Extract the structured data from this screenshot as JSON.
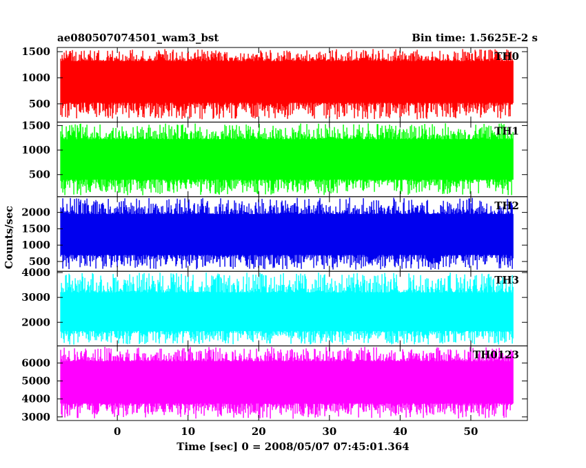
{
  "header": {
    "left_title": "ae080507074501_wam3_bst",
    "right_title": "Bin time: 1.5625E-2 s"
  },
  "chart_data": {
    "type": "line",
    "title": "ae080507074501_wam3_bst",
    "subtitle": "Bin time: 1.5625E-2 s",
    "xlabel": "Time [sec] 0 = 2008/05/07 07:45:01.364",
    "ylabel": "Counts/sec",
    "xlim": [
      -8.5,
      58
    ],
    "x_data_range": [
      -8,
      56
    ],
    "x_ticks": [
      0,
      10,
      20,
      30,
      40,
      50
    ],
    "x_tick_labels": [
      "0",
      "10",
      "20",
      "30",
      "40",
      "50"
    ],
    "grid": false,
    "panels": [
      {
        "name": "TH0",
        "color": "#ff0000",
        "ylim": [
          150,
          1580
        ],
        "y_ticks": [
          500,
          1000,
          1500
        ],
        "y_tick_labels": [
          "500",
          "1000",
          "1500"
        ],
        "approx_range": [
          200,
          1550
        ],
        "approx_center": [
          520,
          1320
        ]
      },
      {
        "name": "TH1",
        "color": "#00ff00",
        "ylim": [
          50,
          1570
        ],
        "y_ticks": [
          500,
          1000,
          1500
        ],
        "y_tick_labels": [
          "500",
          "1000",
          "1500"
        ],
        "approx_range": [
          80,
          1550
        ],
        "approx_center": [
          400,
          1220
        ]
      },
      {
        "name": "TH2",
        "color": "#0000ee",
        "ylim": [
          200,
          2480
        ],
        "y_ticks": [
          500,
          1000,
          1500,
          2000
        ],
        "y_tick_labels": [
          "500",
          "1000",
          "1500",
          "2000"
        ],
        "approx_range": [
          250,
          2450
        ],
        "approx_center": [
          700,
          1950
        ]
      },
      {
        "name": "TH3",
        "color": "#00ffff",
        "ylim": [
          1050,
          4050
        ],
        "y_ticks": [
          2000,
          3000,
          4000
        ],
        "y_tick_labels": [
          "2000",
          "3000",
          "4000"
        ],
        "approx_range": [
          1100,
          4000
        ],
        "approx_center": [
          1650,
          3200
        ]
      },
      {
        "name": "TH0123",
        "color": "#ff00ff",
        "ylim": [
          2800,
          6950
        ],
        "y_ticks": [
          3000,
          4000,
          5000,
          6000
        ],
        "y_tick_labels": [
          "3000",
          "4000",
          "5000",
          "6000"
        ],
        "approx_range": [
          2900,
          6900
        ],
        "approx_center": [
          3750,
          6100
        ]
      }
    ]
  }
}
